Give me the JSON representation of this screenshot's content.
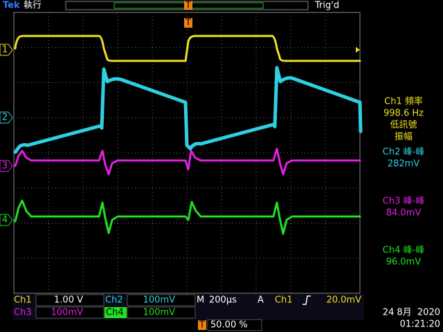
{
  "header": {
    "brand": "Tek",
    "status": "執行",
    "trigger_state": "Trig'd",
    "trigger_marker": "T"
  },
  "channel_markers": [
    "1",
    "2",
    "3",
    "4"
  ],
  "measurements": [
    {
      "lines": [
        "Ch1 頻率",
        "998.6 Hz",
        "低訊號",
        "振幅"
      ]
    },
    {
      "lines": [
        "Ch2 峰-峰",
        "282mV"
      ]
    },
    {
      "lines": [
        "Ch3 峰-峰",
        "84.0mV"
      ]
    },
    {
      "lines": [
        "Ch4 峰-峰",
        "96.0mV"
      ]
    }
  ],
  "settings": {
    "ch1": {
      "name": "Ch1",
      "scale": "1.00 V"
    },
    "ch2": {
      "name": "Ch2",
      "scale": "100mV"
    },
    "ch3": {
      "name": "Ch3",
      "scale": "100mV"
    },
    "ch4": {
      "name": "Ch4",
      "scale": "100mV"
    },
    "timebase": {
      "prefix": "M",
      "value": "200µs"
    },
    "trigger": {
      "prefix": "A",
      "source": "Ch1",
      "level": "20.0mV"
    },
    "position": "50.00 %",
    "date": "24 8月  2020",
    "time": "01:21:20"
  }
}
